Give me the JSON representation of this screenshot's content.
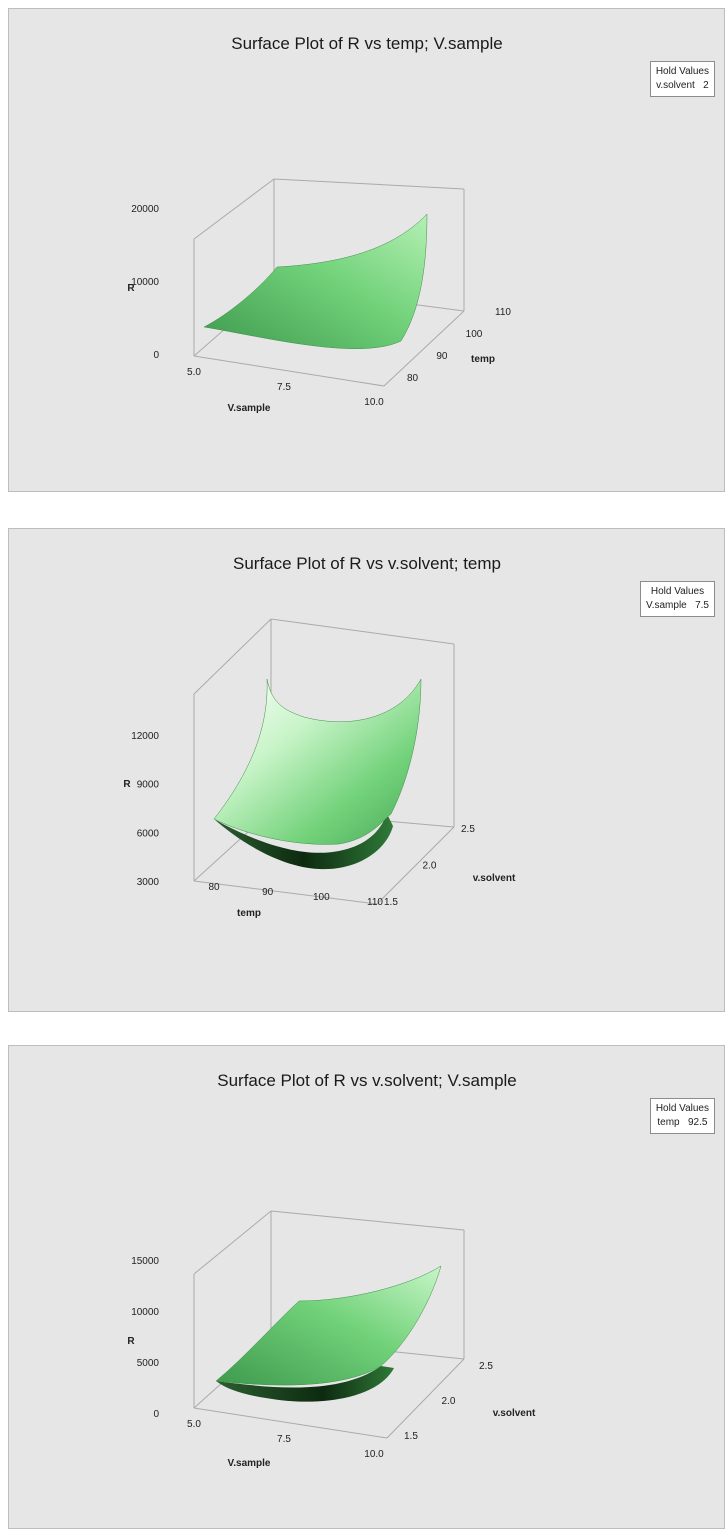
{
  "chart_data": [
    {
      "type": "surface",
      "title": "Surface Plot of R vs temp; V.sample",
      "zlabel": "R",
      "xlabel": "V.sample",
      "ylabel": "temp",
      "x_ticks": [
        "5.0",
        "7.5",
        "10.0"
      ],
      "y_ticks": [
        "80",
        "90",
        "100",
        "110"
      ],
      "z_ticks": [
        "0",
        "10000",
        "20000"
      ],
      "xlim": [
        5.0,
        10.0
      ],
      "ylim": [
        75,
        110
      ],
      "zlim": [
        0,
        22000
      ],
      "hold_title": "Hold Values",
      "hold_name": "v.solvent",
      "hold_value": "2",
      "color": "#66cc66"
    },
    {
      "type": "surface",
      "title": "Surface Plot of R vs v.solvent; temp",
      "zlabel": "R",
      "xlabel": "temp",
      "ylabel": "v.solvent",
      "x_ticks": [
        "80",
        "90",
        "100",
        "110"
      ],
      "y_ticks": [
        "1.5",
        "2.0",
        "2.5"
      ],
      "z_ticks": [
        "3000",
        "6000",
        "9000",
        "12000"
      ],
      "xlim": [
        75,
        110
      ],
      "ylim": [
        1.5,
        2.5
      ],
      "zlim": [
        2000,
        13000
      ],
      "hold_title": "Hold Values",
      "hold_name": "V.sample",
      "hold_value": "7.5",
      "color": "#66cc66"
    },
    {
      "type": "surface",
      "title": "Surface Plot of R vs v.solvent; V.sample",
      "zlabel": "R",
      "xlabel": "V.sample",
      "ylabel": "v.solvent",
      "x_ticks": [
        "5.0",
        "7.5",
        "10.0"
      ],
      "y_ticks": [
        "1.5",
        "2.0",
        "2.5"
      ],
      "z_ticks": [
        "0",
        "5000",
        "10000",
        "15000"
      ],
      "xlim": [
        5.0,
        10.0
      ],
      "ylim": [
        1.5,
        2.5
      ],
      "zlim": [
        0,
        17000
      ],
      "hold_title": "Hold Values",
      "hold_name": "temp",
      "hold_value": "92.5",
      "color": "#66cc66"
    }
  ]
}
